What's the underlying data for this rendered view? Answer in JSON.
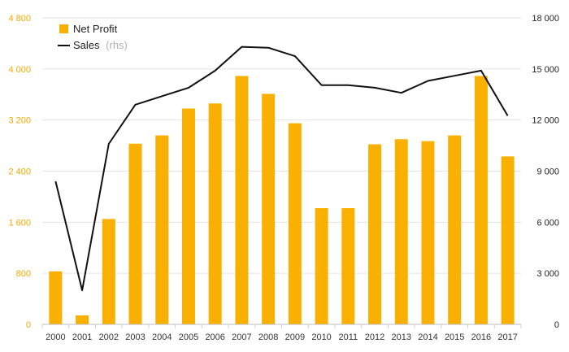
{
  "chart_data": {
    "type": "bar+line",
    "categories": [
      "2000",
      "2001",
      "2002",
      "2003",
      "2004",
      "2005",
      "2006",
      "2007",
      "2008",
      "2009",
      "2010",
      "2011",
      "2012",
      "2013",
      "2014",
      "2015",
      "2016",
      "2017"
    ],
    "series": [
      {
        "name": "Net Profit",
        "type": "bar",
        "axis": "left",
        "color": "#f9b000",
        "values": [
          830,
          140,
          1650,
          2830,
          2960,
          3380,
          3460,
          3890,
          3610,
          3150,
          1820,
          1820,
          2820,
          2900,
          2870,
          2960,
          3890,
          2630
        ]
      },
      {
        "name": "Sales",
        "name_suffix": "(rhs)",
        "type": "line",
        "axis": "right",
        "color": "#111111",
        "values": [
          8400,
          2000,
          10600,
          12900,
          13400,
          13900,
          14900,
          16300,
          16250,
          15750,
          14050,
          14050,
          13900,
          13600,
          14300,
          14600,
          14900,
          12250
        ]
      }
    ],
    "y_left": {
      "min": 0,
      "max": 4800,
      "ticks": [
        0,
        800,
        1600,
        2400,
        3200,
        4000,
        4800
      ],
      "tick_labels": [
        "0",
        "800",
        "1 600",
        "2 400",
        "3 200",
        "4 000",
        "4 800"
      ],
      "color": "#f2a900"
    },
    "y_right": {
      "min": 0,
      "max": 18000,
      "ticks": [
        0,
        3000,
        6000,
        9000,
        12000,
        15000,
        18000
      ],
      "tick_labels": [
        "0",
        "3 000",
        "6 000",
        "9 000",
        "12 000",
        "15 000",
        "18 000"
      ]
    },
    "grid": true,
    "legend": "top-left",
    "title": "",
    "xlabel": "",
    "ylabel": ""
  }
}
